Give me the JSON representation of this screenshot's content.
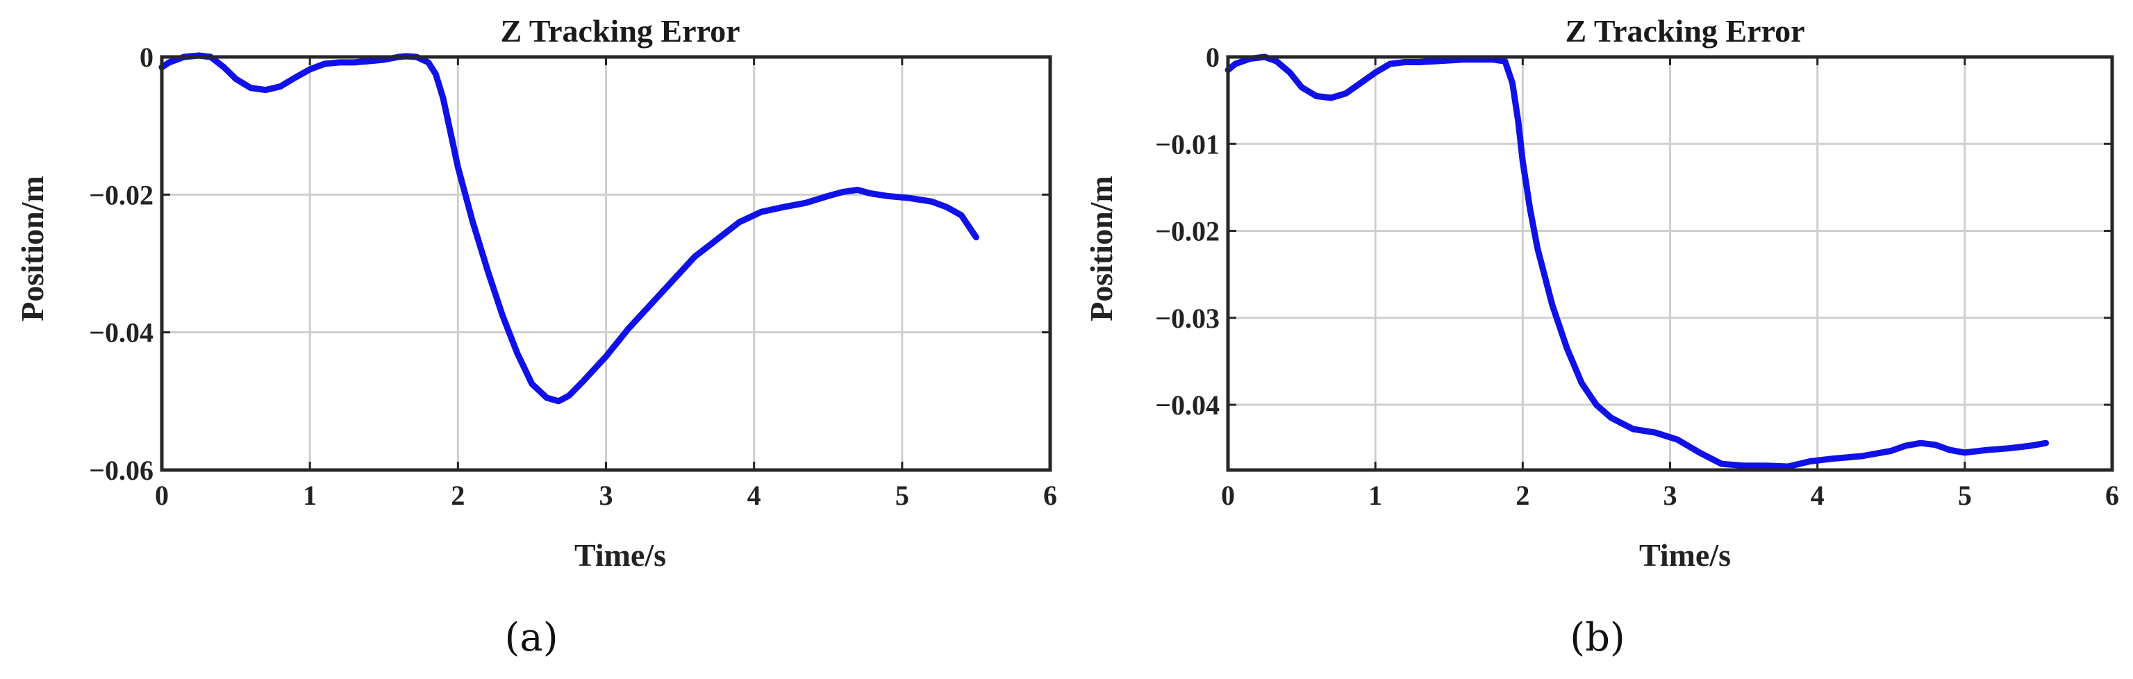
{
  "colors": {
    "line": "#1010e8",
    "axis": "#262626",
    "grid": "#cfcfcf"
  },
  "chart_data": [
    {
      "type": "line",
      "panel_label": "(a)",
      "title": "Z Tracking Error",
      "xlabel": "Time/s",
      "ylabel": "Position/m",
      "xlim": [
        0,
        6
      ],
      "ylim": [
        -0.06,
        0
      ],
      "xticks": [
        0,
        1,
        2,
        3,
        4,
        5,
        6
      ],
      "xtick_labels": [
        "0",
        "1",
        "2",
        "3",
        "4",
        "5",
        "6"
      ],
      "yticks": [
        0,
        -0.02,
        -0.04,
        -0.06
      ],
      "ytick_labels": [
        "0",
        "−0.02",
        "−0.04",
        "−0.06"
      ],
      "grid": true,
      "series": [
        {
          "x": [
            0,
            0.05,
            0.15,
            0.25,
            0.33,
            0.42,
            0.5,
            0.6,
            0.7,
            0.8,
            0.9,
            1.0,
            1.1,
            1.2,
            1.3,
            1.4,
            1.5,
            1.6,
            1.65,
            1.72,
            1.8,
            1.85,
            1.9,
            1.95,
            2.0,
            2.1,
            2.2,
            2.3,
            2.4,
            2.5,
            2.6,
            2.68,
            2.75,
            2.85,
            3.0,
            3.15,
            3.3,
            3.45,
            3.6,
            3.75,
            3.9,
            4.05,
            4.2,
            4.35,
            4.5,
            4.6,
            4.7,
            4.78,
            4.9,
            5.05,
            5.2,
            5.3,
            5.4,
            5.5
          ],
          "y": [
            -0.0015,
            -0.0008,
            0.0,
            0.0002,
            0.0,
            -0.0015,
            -0.0032,
            -0.0045,
            -0.0048,
            -0.0043,
            -0.003,
            -0.0018,
            -0.001,
            -0.0008,
            -0.0008,
            -0.0006,
            -0.0004,
            0.0,
            0.0001,
            0.0,
            -0.0008,
            -0.0025,
            -0.006,
            -0.011,
            -0.016,
            -0.024,
            -0.031,
            -0.0375,
            -0.043,
            -0.0475,
            -0.0495,
            -0.05,
            -0.0492,
            -0.047,
            -0.0435,
            -0.0395,
            -0.036,
            -0.0325,
            -0.029,
            -0.0265,
            -0.024,
            -0.0225,
            -0.0218,
            -0.0212,
            -0.0202,
            -0.0196,
            -0.0193,
            -0.0198,
            -0.0202,
            -0.0205,
            -0.021,
            -0.0218,
            -0.023,
            -0.0262
          ]
        }
      ]
    },
    {
      "type": "line",
      "panel_label": "(b)",
      "title": "Z Tracking Error",
      "xlabel": "Time/s",
      "ylabel": "Position/m",
      "xlim": [
        0,
        6
      ],
      "ylim": [
        -0.0475,
        0
      ],
      "xticks": [
        0,
        1,
        2,
        3,
        4,
        5,
        6
      ],
      "xtick_labels": [
        "0",
        "1",
        "2",
        "3",
        "4",
        "5",
        "6"
      ],
      "yticks": [
        0,
        -0.01,
        -0.02,
        -0.03,
        -0.04
      ],
      "ytick_labels": [
        "0",
        "−0.01",
        "−0.02",
        "−0.03",
        "−0.04"
      ],
      "grid": true,
      "series": [
        {
          "x": [
            0,
            0.05,
            0.15,
            0.25,
            0.33,
            0.42,
            0.5,
            0.6,
            0.7,
            0.8,
            0.9,
            1.0,
            1.1,
            1.2,
            1.3,
            1.4,
            1.5,
            1.6,
            1.7,
            1.8,
            1.88,
            1.93,
            1.97,
            2.0,
            2.05,
            2.1,
            2.2,
            2.3,
            2.4,
            2.5,
            2.6,
            2.75,
            2.9,
            3.05,
            3.2,
            3.35,
            3.5,
            3.65,
            3.8,
            3.95,
            4.1,
            4.3,
            4.5,
            4.6,
            4.7,
            4.8,
            4.9,
            5.0,
            5.15,
            5.3,
            5.45,
            5.55
          ],
          "y": [
            -0.0015,
            -0.0008,
            -0.0002,
            0.0,
            -0.0005,
            -0.0018,
            -0.0035,
            -0.0045,
            -0.0047,
            -0.0042,
            -0.003,
            -0.0018,
            -0.0008,
            -0.0006,
            -0.0006,
            -0.0005,
            -0.0004,
            -0.0003,
            -0.0003,
            -0.0003,
            -0.0005,
            -0.003,
            -0.0075,
            -0.012,
            -0.0175,
            -0.022,
            -0.0285,
            -0.0335,
            -0.0375,
            -0.04,
            -0.0415,
            -0.0428,
            -0.0432,
            -0.044,
            -0.0455,
            -0.0468,
            -0.047,
            -0.047,
            -0.0471,
            -0.0465,
            -0.0462,
            -0.0459,
            -0.0453,
            -0.0447,
            -0.0444,
            -0.0446,
            -0.0452,
            -0.0455,
            -0.0452,
            -0.045,
            -0.0447,
            -0.0444
          ]
        }
      ]
    }
  ]
}
